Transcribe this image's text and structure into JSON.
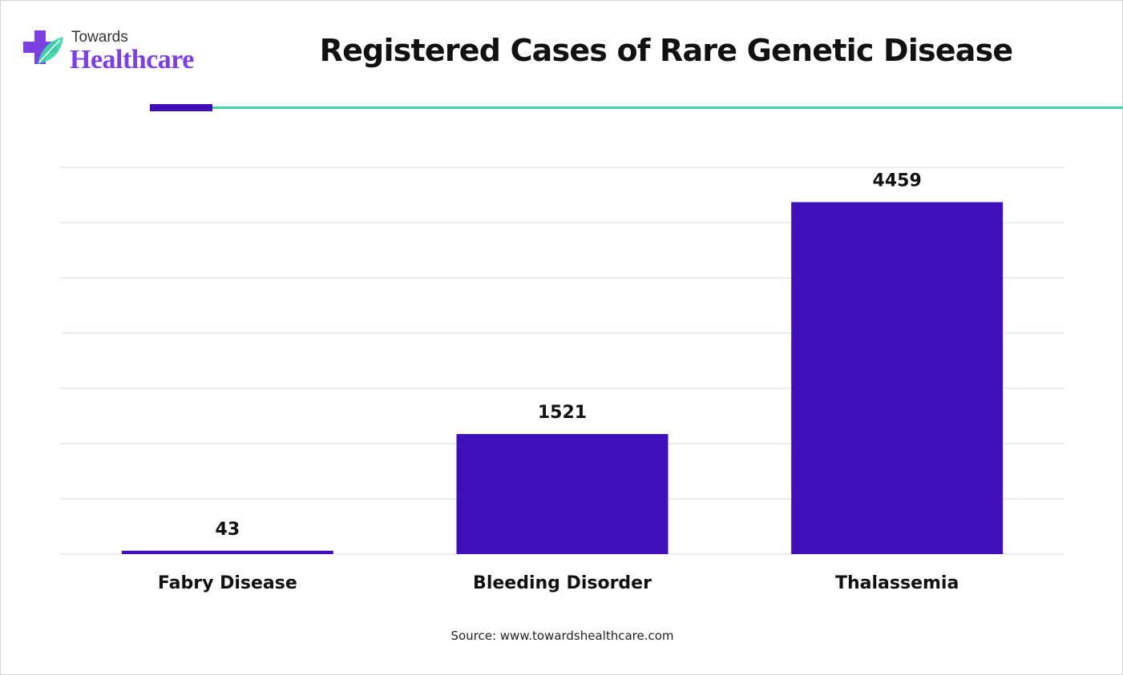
{
  "brand": {
    "top": "Towards",
    "main": "Healthcare"
  },
  "colors": {
    "bar": "#3f0fb9",
    "accent_line": "#3ed6a6",
    "grid": "#d9d9d9",
    "logo_purple": "#7b3fe4",
    "logo_green": "#3ed6a6"
  },
  "footer": {
    "source": "Source: www.towardshealthcare.com"
  },
  "chart_data": {
    "type": "bar",
    "title": "Registered Cases of Rare Genetic Disease",
    "categories": [
      "Fabry Disease",
      "Bleeding Disorder",
      "Thalassemia"
    ],
    "values": [
      43,
      1521,
      4459
    ],
    "xlabel": "",
    "ylabel": "",
    "ylim": [
      0,
      4900
    ],
    "grid": true,
    "gridline_count": 7
  }
}
